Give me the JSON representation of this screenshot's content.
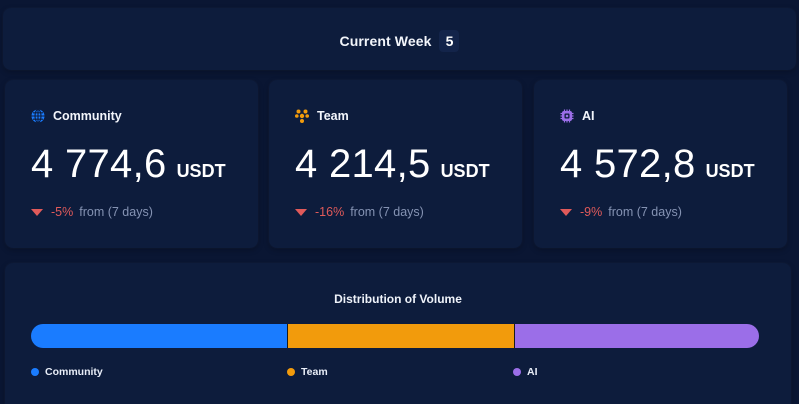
{
  "header": {
    "label": "Current Week",
    "week_number": "5"
  },
  "cards": [
    {
      "title": "Community",
      "icon": "globe-icon",
      "amount": "4 774,6",
      "unit": "USDT",
      "change_pct": "-5%",
      "change_suffix": "from (7 days)",
      "color": "#1a7cff"
    },
    {
      "title": "Team",
      "icon": "team-icon",
      "amount": "4 214,5",
      "unit": "USDT",
      "change_pct": "-16%",
      "change_suffix": "from (7 days)",
      "color": "#f29b0c"
    },
    {
      "title": "AI",
      "icon": "chip-icon",
      "amount": "4 572,8",
      "unit": "USDT",
      "change_pct": "-9%",
      "change_suffix": "from (7 days)",
      "color": "#9b6ee8"
    }
  ],
  "distribution": {
    "title": "Distribution of Volume",
    "legend": [
      {
        "label": "Community",
        "color": "#1a7cff"
      },
      {
        "label": "Team",
        "color": "#f29b0c"
      },
      {
        "label": "AI",
        "color": "#9b6ee8"
      }
    ]
  },
  "colors": {
    "background": "#0a1633",
    "panel": "#0d1c3c",
    "negative": "#e05a5a",
    "muted_text": "#8593b3"
  }
}
